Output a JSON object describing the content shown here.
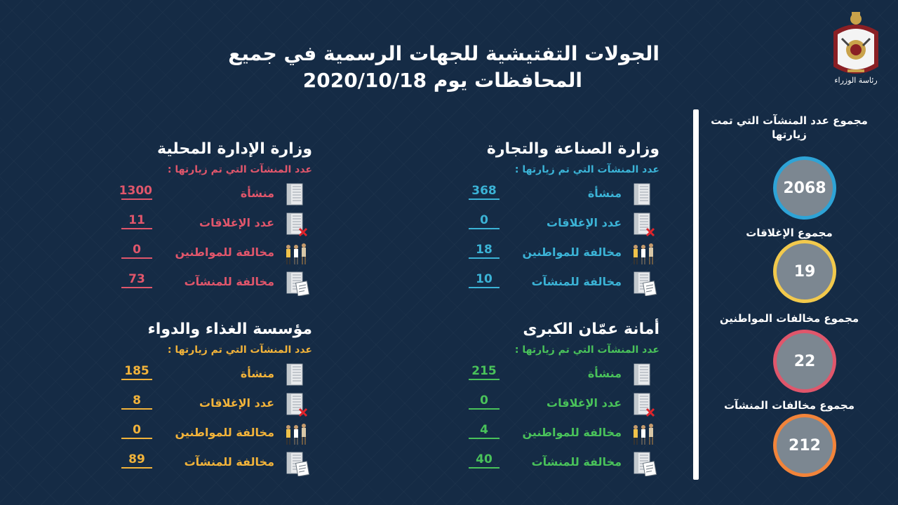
{
  "title": {
    "line1": "الجولات التفتيشية للجهات الرسمية في جميع",
    "line2": "المحافظات يوم 2020/10/18"
  },
  "emblem_caption": "رئاسة الوزراء",
  "summary": [
    {
      "label": "مجموع عدد المنشآت التي تمت زيارتها",
      "value": "2068",
      "color": "#2ea3d6"
    },
    {
      "label": "مجموع الإغلاقات",
      "value": "19",
      "color": "#f2c94c"
    },
    {
      "label": "مجموع مخالفات المواطنين",
      "value": "22",
      "color": "#e0566b"
    },
    {
      "label": "مجموع مخالفات المنشآت",
      "value": "212",
      "color": "#f2843a"
    }
  ],
  "blocks": [
    {
      "title": "وزارة الصناعة والتجارة",
      "subtitle": "عدد المنشآت التي تم زيارتها :",
      "color": "#3bb3d6",
      "rows": [
        {
          "label": "منشأة",
          "value": "368",
          "icon": "building-icon"
        },
        {
          "label": "عدد الإغلاقات",
          "value": "0",
          "icon": "building-closed-icon"
        },
        {
          "label": "مخالفة للمواطنين",
          "value": "18",
          "icon": "people-icon"
        },
        {
          "label": "مخالفة للمنشآت",
          "value": "10",
          "icon": "building-document-icon"
        }
      ]
    },
    {
      "title": "وزارة الإدارة المحلية",
      "subtitle": "عدد المنشآت التي تم زيارتها :",
      "color": "#e0566b",
      "rows": [
        {
          "label": "منشأة",
          "value": "1300",
          "icon": "building-icon"
        },
        {
          "label": "عدد الإغلاقات",
          "value": "11",
          "icon": "building-closed-icon"
        },
        {
          "label": "مخالفة للمواطنين",
          "value": "0",
          "icon": "people-icon"
        },
        {
          "label": "مخالفة للمنشآت",
          "value": "73",
          "icon": "building-document-icon"
        }
      ]
    },
    {
      "title": "أمانة عمّان الكبرى",
      "subtitle": "عدد المنشآت التي تم زيارتها :",
      "color": "#49c25a",
      "rows": [
        {
          "label": "منشأة",
          "value": "215",
          "icon": "building-icon"
        },
        {
          "label": "عدد الإغلاقات",
          "value": "0",
          "icon": "building-closed-icon"
        },
        {
          "label": "مخالفة للمواطنين",
          "value": "4",
          "icon": "people-icon"
        },
        {
          "label": "مخالفة للمنشآت",
          "value": "40",
          "icon": "building-document-icon"
        }
      ]
    },
    {
      "title": "مؤسسة الغذاء والدواء",
      "subtitle": "عدد المنشآت التي تم زيارتها :",
      "color": "#f2b33a",
      "rows": [
        {
          "label": "منشأة",
          "value": "185",
          "icon": "building-icon"
        },
        {
          "label": "عدد الإغلاقات",
          "value": "8",
          "icon": "building-closed-icon"
        },
        {
          "label": "مخالفة للمواطنين",
          "value": "0",
          "icon": "people-icon"
        },
        {
          "label": "مخالفة للمنشآت",
          "value": "89",
          "icon": "building-document-icon"
        }
      ]
    }
  ]
}
